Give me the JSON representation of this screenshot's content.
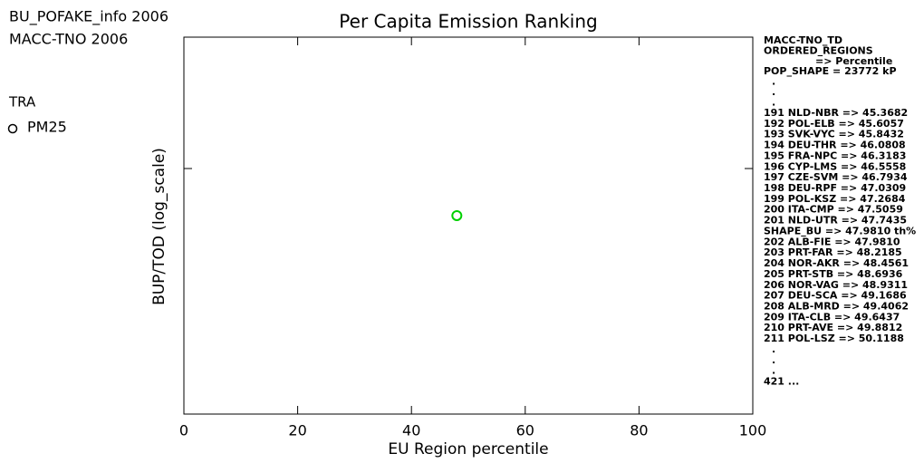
{
  "chart_data": {
    "type": "scatter",
    "title": "Per Capita Emission Ranking",
    "header_lines": [
      "BU_POFAKE_info 2006",
      "MACC-TNO 2006"
    ],
    "legend_title": "TRA",
    "legend_title_color": "#00e000",
    "x_label": "EU Region percentile",
    "y_label": "BUP/TOD (log_scale)",
    "log_y": true,
    "xlim": [
      0,
      100
    ],
    "xticks": [
      0,
      20,
      40,
      60,
      80,
      100
    ],
    "ylim": [
      0.1,
      10
    ],
    "series": [
      {
        "name": "PM25",
        "color": "#00d000",
        "x": [
          47.981
        ],
        "values": [
          1.13
        ]
      }
    ],
    "side_panel": [
      {
        "text": "MACC-TNO_TD",
        "color": "#1478ff"
      },
      {
        "text": "ORDERED_REGIONS",
        "color": "#1478ff"
      },
      {
        "text": "=> Percentile",
        "color": "#1478ff"
      },
      {
        "text": "POP_SHAPE = 23772 kP",
        "color": "#ff0000"
      },
      {
        "text": ".",
        "color": "#000000"
      },
      {
        "text": ".",
        "color": "#000000"
      },
      {
        "text": ".",
        "color": "#000000"
      },
      {
        "text": "191 NLD-NBR => 45.3682",
        "color": "#1478ff"
      },
      {
        "text": "192 POL-ELB => 45.6057",
        "color": "#1478ff"
      },
      {
        "text": "193 SVK-VYC => 45.8432",
        "color": "#1478ff"
      },
      {
        "text": "194 DEU-THR => 46.0808",
        "color": "#1478ff"
      },
      {
        "text": "195 FRA-NPC => 46.3183",
        "color": "#1478ff"
      },
      {
        "text": "196 CYP-LMS => 46.5558",
        "color": "#1478ff"
      },
      {
        "text": "197 CZE-SVM => 46.7934",
        "color": "#1478ff"
      },
      {
        "text": "198 DEU-RPF => 47.0309",
        "color": "#1478ff"
      },
      {
        "text": "199 POL-KSZ => 47.2684",
        "color": "#1478ff"
      },
      {
        "text": "200 ITA-CMP => 47.5059",
        "color": "#1478ff"
      },
      {
        "text": "201 NLD-UTR => 47.7435",
        "color": "#1478ff"
      },
      {
        "text": "SHAPE_BU => 47.9810 th%",
        "color": "#ff0000"
      },
      {
        "text": "202 ALB-FIE => 47.9810",
        "color": "#1478ff"
      },
      {
        "text": "203 PRT-FAR => 48.2185",
        "color": "#1478ff"
      },
      {
        "text": "204 NOR-AKR => 48.4561",
        "color": "#1478ff"
      },
      {
        "text": "205 PRT-STB => 48.6936",
        "color": "#1478ff"
      },
      {
        "text": "206 NOR-VAG => 48.9311",
        "color": "#1478ff"
      },
      {
        "text": "207 DEU-SCA => 49.1686",
        "color": "#1478ff"
      },
      {
        "text": "208 ALB-MRD => 49.4062",
        "color": "#1478ff"
      },
      {
        "text": "209 ITA-CLB => 49.6437",
        "color": "#1478ff"
      },
      {
        "text": "210 PRT-AVE => 49.8812",
        "color": "#1478ff"
      },
      {
        "text": "211 POL-LSZ => 50.1188",
        "color": "#1478ff"
      },
      {
        "text": ".",
        "color": "#1478ff"
      },
      {
        "text": ".",
        "color": "#1478ff"
      },
      {
        "text": ".",
        "color": "#1478ff"
      },
      {
        "text": "421 ...",
        "color": "#1478ff"
      }
    ]
  }
}
